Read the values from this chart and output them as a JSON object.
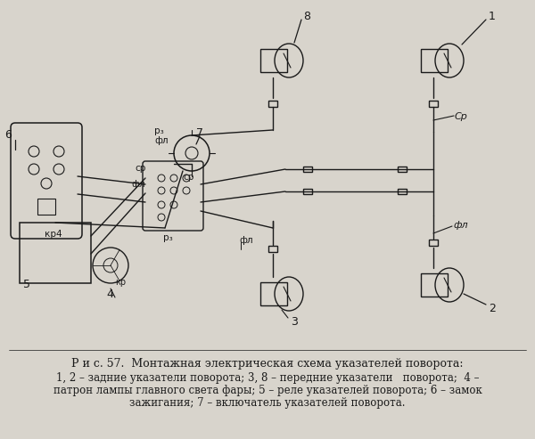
{
  "bg_color": "#d8d4cc",
  "line_color": "#1a1a1a",
  "title_text": "Р и с. 57.  Монтажная электрическая схема указателей поворота:",
  "caption_line1": "1, 2 – задние указатели поворота; 3, 8 – передние указатели   поворота;  4 –",
  "caption_line2": "патрон лампы главного света фары; 5 – реле указателей поворота; 6 – замок",
  "caption_line3": "зажигания; 7 – включатель указателей поворота.",
  "title_fontsize": 9.0,
  "caption_fontsize": 8.5
}
